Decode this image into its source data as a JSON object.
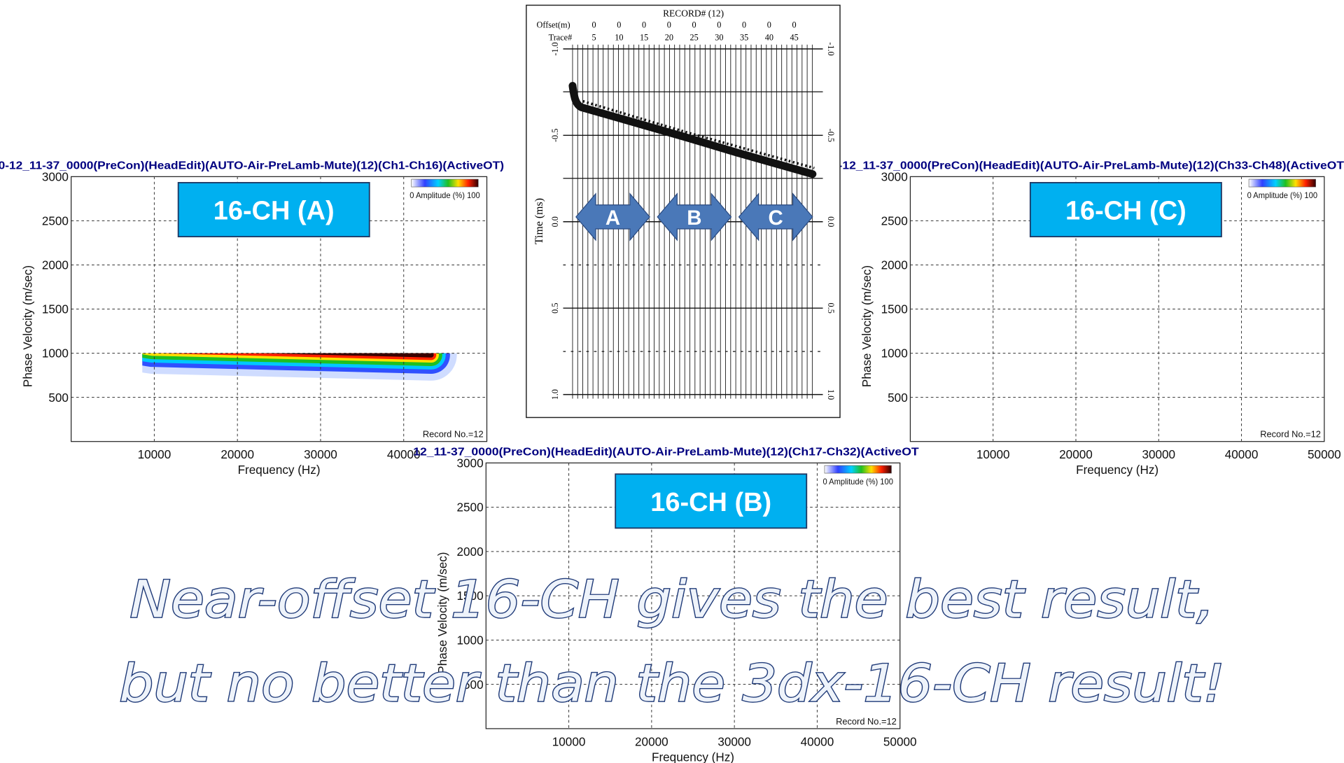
{
  "panels": [
    {
      "title": "0-12_11-37_0000(PreCon)(HeadEdit)(AUTO-Air-PreLamb-Mute)(12)(Ch1-Ch16)(ActiveOT)",
      "label": "16-CH (A)",
      "y_axis": "Phase Velocity (m/sec)",
      "x_axis": "Frequency (Hz)",
      "yticks": [
        "3000",
        "2500",
        "2000",
        "1500",
        "1000",
        "500"
      ],
      "xticks": [
        "10000",
        "20000",
        "30000",
        "40000"
      ],
      "legend": "0 Amplitude (%) 100",
      "record": "Record No.=12"
    },
    {
      "title": "-12_11-37_0000(PreCon)(HeadEdit)(AUTO-Air-PreLamb-Mute)(12)(Ch33-Ch48)(ActiveOT",
      "label": "16-CH (C)",
      "y_axis": "Phase Velocity (m/sec)",
      "x_axis": "Frequency (Hz)",
      "yticks": [
        "3000",
        "2500",
        "2000",
        "1500",
        "1000",
        "500"
      ],
      "xticks": [
        "10000",
        "20000",
        "30000",
        "40000",
        "50000"
      ],
      "legend": "0 Amplitude (%) 100",
      "record": "Record No.=12"
    },
    {
      "title": "12_11-37_0000(PreCon)(HeadEdit)(AUTO-Air-PreLamb-Mute)(12)(Ch17-Ch32)(ActiveOT",
      "label": "16-CH (B)",
      "y_axis": "Phase Velocity (m/sec)",
      "x_axis": "Frequency (Hz)",
      "yticks": [
        "3000",
        "2500",
        "2000",
        "1500",
        "1000",
        "500"
      ],
      "xticks": [
        "10000",
        "20000",
        "30000",
        "40000",
        "50000"
      ],
      "legend": "0 Amplitude (%) 100",
      "record": "Record No.=12"
    }
  ],
  "record": {
    "title": "RECORD# (12)",
    "offset_label": "Offset(m)",
    "offsets": [
      "0",
      "0",
      "0",
      "0",
      "0",
      "0",
      "0",
      "0",
      "0"
    ],
    "trace_label": "Trace#",
    "traces": [
      "5",
      "10",
      "15",
      "20",
      "25",
      "30",
      "35",
      "40",
      "45"
    ],
    "time_label": "Time (ms)",
    "time_ticks": [
      "-1.0",
      "-0.5",
      "0.0",
      "0.5",
      "1.0"
    ],
    "arrows": [
      "A",
      "B",
      "C"
    ]
  },
  "caption": [
    "Near-offset 16-CH gives the best result,",
    "but no better than the 3dx-16-CH result!"
  ]
}
